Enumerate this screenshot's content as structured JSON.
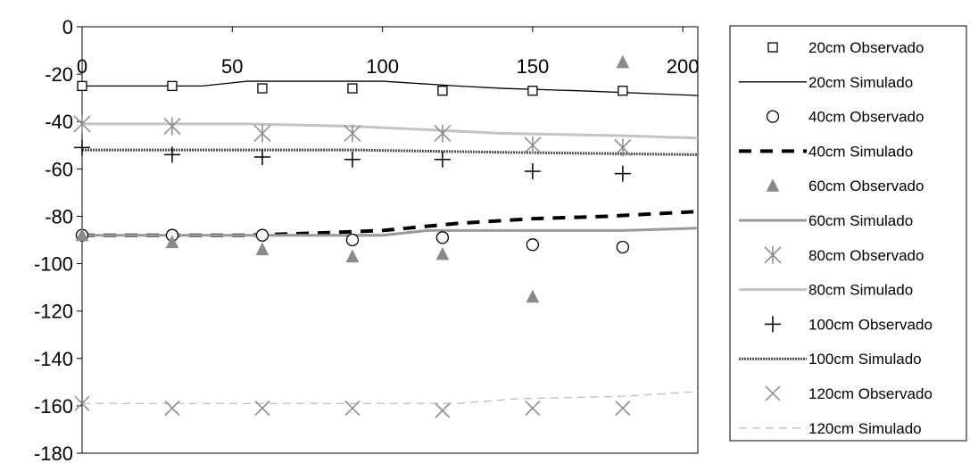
{
  "chart_data": {
    "type": "line",
    "title": "",
    "xlabel": "",
    "ylabel": "",
    "xlim": [
      0,
      205
    ],
    "ylim": [
      -180,
      0
    ],
    "xticks": [
      "0",
      "50",
      "100",
      "150",
      "200"
    ],
    "yticks": [
      "0",
      "-20",
      "-40",
      "-60",
      "-80",
      "-100",
      "-120",
      "-140",
      "-160",
      "-180"
    ],
    "grid": false,
    "legend": "right",
    "series": [
      {
        "name": "20cm Observado",
        "kind": "markers",
        "marker": "square",
        "color": "#000000",
        "x": [
          0,
          30,
          60,
          90,
          120,
          150,
          180
        ],
        "y": [
          -25,
          -25,
          -26,
          -26,
          -27,
          -27,
          -27
        ]
      },
      {
        "name": "20cm Simulado",
        "kind": "line",
        "dash": "solid",
        "color": "#000000",
        "x": [
          0,
          40,
          55,
          100,
          125,
          140,
          165,
          205
        ],
        "y": [
          -25,
          -25,
          -23,
          -23,
          -25,
          -26,
          -27,
          -29
        ]
      },
      {
        "name": "40cm Observado",
        "kind": "markers",
        "marker": "circle",
        "color": "#000000",
        "x": [
          0,
          30,
          60,
          90,
          120,
          150,
          180
        ],
        "y": [
          -88,
          -88,
          -88,
          -90,
          -89,
          -92,
          -93
        ]
      },
      {
        "name": "40cm Simulado",
        "kind": "line",
        "dash": "bold-dash",
        "color": "#000000",
        "x": [
          0,
          55,
          80,
          100,
          125,
          150,
          175,
          205
        ],
        "y": [
          -88,
          -88,
          -87,
          -86,
          -83,
          -81,
          -80,
          -78
        ]
      },
      {
        "name": "60cm Observado",
        "kind": "markers",
        "marker": "triangle",
        "color": "#8a8a8a",
        "x": [
          0,
          30,
          60,
          90,
          120,
          150,
          180
        ],
        "y": [
          -88,
          -91,
          -94,
          -97,
          -96,
          -114,
          -15
        ]
      },
      {
        "name": "60cm Simulado",
        "kind": "line",
        "dash": "solid-thick",
        "color": "#999999",
        "x": [
          0,
          100,
          115,
          180,
          205
        ],
        "y": [
          -88,
          -88,
          -86,
          -86,
          -85
        ]
      },
      {
        "name": "80cm Observado",
        "kind": "markers",
        "marker": "asterisk",
        "color": "#8a8a8a",
        "x": [
          0,
          30,
          60,
          90,
          120,
          150,
          180
        ],
        "y": [
          -41,
          -42,
          -45,
          -45,
          -45,
          -50,
          -51
        ]
      },
      {
        "name": "80cm Simulado",
        "kind": "line",
        "dash": "solid-thick",
        "color": "#c4c4c4",
        "x": [
          0,
          55,
          90,
          140,
          180,
          205
        ],
        "y": [
          -41,
          -41,
          -42,
          -45,
          -46,
          -47
        ]
      },
      {
        "name": "100cm Observado",
        "kind": "markers",
        "marker": "plus",
        "color": "#000000",
        "x": [
          0,
          30,
          60,
          90,
          120,
          150,
          180
        ],
        "y": [
          -51,
          -54,
          -55,
          -56,
          -56,
          -61,
          -62
        ]
      },
      {
        "name": "100cm Simulado",
        "kind": "line",
        "dash": "hatched",
        "color": "#555555",
        "x": [
          0,
          90,
          140,
          205
        ],
        "y": [
          -52,
          -52,
          -53,
          -54
        ]
      },
      {
        "name": "120cm Observado",
        "kind": "markers",
        "marker": "x",
        "color": "#8a8a8a",
        "x": [
          0,
          30,
          60,
          90,
          120,
          150,
          180
        ],
        "y": [
          -159,
          -161,
          -161,
          -161,
          -162,
          -161,
          -161
        ]
      },
      {
        "name": "120cm Simulado",
        "kind": "line",
        "dash": "dashed",
        "color": "#bdbdbd",
        "x": [
          0,
          60,
          125,
          145,
          180,
          205
        ],
        "y": [
          -159,
          -159,
          -159,
          -157,
          -156,
          -154
        ]
      }
    ]
  }
}
